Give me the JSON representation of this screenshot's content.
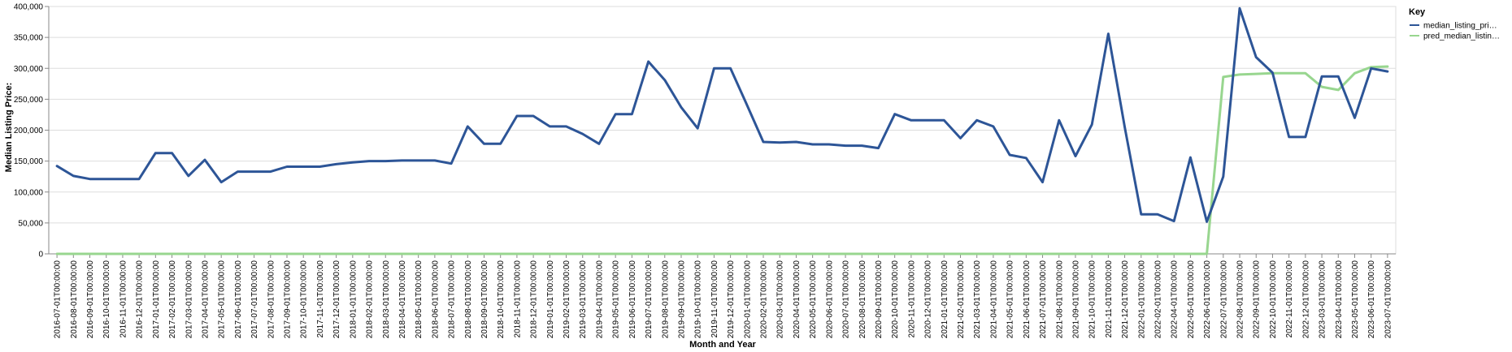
{
  "chart_data": {
    "type": "line",
    "xlabel": "Month and Year",
    "ylabel": "Median Listing Price:",
    "ylim": [
      0,
      400000
    ],
    "yticks": [
      "0",
      "50,000",
      "100,000",
      "150,000",
      "200,000",
      "250,000",
      "300,000",
      "350,000",
      "400,000"
    ],
    "grid": true,
    "legend_title": "Key",
    "legend_position": "right",
    "categories": [
      "2016-07-01T00:00:00",
      "2016-08-01T00:00:00",
      "2016-09-01T00:00:00",
      "2016-10-01T00:00:00",
      "2016-11-01T00:00:00",
      "2016-12-01T00:00:00",
      "2017-01-01T00:00:00",
      "2017-02-01T00:00:00",
      "2017-03-01T00:00:00",
      "2017-04-01T00:00:00",
      "2017-05-01T00:00:00",
      "2017-06-01T00:00:00",
      "2017-07-01T00:00:00",
      "2017-08-01T00:00:00",
      "2017-09-01T00:00:00",
      "2017-10-01T00:00:00",
      "2017-11-01T00:00:00",
      "2017-12-01T00:00:00",
      "2018-01-01T00:00:00",
      "2018-02-01T00:00:00",
      "2018-03-01T00:00:00",
      "2018-04-01T00:00:00",
      "2018-05-01T00:00:00",
      "2018-06-01T00:00:00",
      "2018-07-01T00:00:00",
      "2018-08-01T00:00:00",
      "2018-09-01T00:00:00",
      "2018-10-01T00:00:00",
      "2018-11-01T00:00:00",
      "2018-12-01T00:00:00",
      "2019-01-01T00:00:00",
      "2019-02-01T00:00:00",
      "2019-03-01T00:00:00",
      "2019-04-01T00:00:00",
      "2019-05-01T00:00:00",
      "2019-06-01T00:00:00",
      "2019-07-01T00:00:00",
      "2019-08-01T00:00:00",
      "2019-09-01T00:00:00",
      "2019-10-01T00:00:00",
      "2019-11-01T00:00:00",
      "2019-12-01T00:00:00",
      "2020-01-01T00:00:00",
      "2020-02-01T00:00:00",
      "2020-03-01T00:00:00",
      "2020-04-01T00:00:00",
      "2020-05-01T00:00:00",
      "2020-06-01T00:00:00",
      "2020-07-01T00:00:00",
      "2020-08-01T00:00:00",
      "2020-09-01T00:00:00",
      "2020-10-01T00:00:00",
      "2020-11-01T00:00:00",
      "2020-12-01T00:00:00",
      "2021-01-01T00:00:00",
      "2021-02-01T00:00:00",
      "2021-03-01T00:00:00",
      "2021-04-01T00:00:00",
      "2021-05-01T00:00:00",
      "2021-06-01T00:00:00",
      "2021-07-01T00:00:00",
      "2021-08-01T00:00:00",
      "2021-09-01T00:00:00",
      "2021-10-01T00:00:00",
      "2021-11-01T00:00:00",
      "2021-12-01T00:00:00",
      "2022-01-01T00:00:00",
      "2022-02-01T00:00:00",
      "2022-04-01T00:00:00",
      "2022-05-01T00:00:00",
      "2022-06-01T00:00:00",
      "2022-07-01T00:00:00",
      "2022-08-01T00:00:00",
      "2022-09-01T00:00:00",
      "2022-10-01T00:00:00",
      "2022-11-01T00:00:00",
      "2022-12-01T00:00:00",
      "2023-03-01T00:00:00",
      "2023-04-01T00:00:00",
      "2023-05-01T00:00:00",
      "2023-06-01T00:00:00",
      "2023-07-01T00:00:00"
    ],
    "series": [
      {
        "name": "median_listing_pri…",
        "color": "#2d5597",
        "values": [
          142000,
          126000,
          121000,
          121000,
          121000,
          121000,
          163000,
          163000,
          126000,
          152000,
          116000,
          133000,
          133000,
          133000,
          141000,
          141000,
          141000,
          145000,
          148000,
          150000,
          150000,
          151000,
          151000,
          151000,
          146000,
          206000,
          178000,
          178000,
          223000,
          223000,
          206000,
          206000,
          194000,
          178000,
          226000,
          226000,
          311000,
          281000,
          237000,
          203000,
          300000,
          300000,
          241000,
          181000,
          180000,
          181000,
          177000,
          177000,
          175000,
          175000,
          171000,
          226000,
          216000,
          216000,
          216000,
          187000,
          216000,
          206000,
          160000,
          155000,
          116000,
          216000,
          158000,
          209000,
          356000,
          205000,
          64000,
          64000,
          53000,
          156000,
          52000,
          125000,
          397000,
          318000,
          293000,
          189000,
          189000,
          287000,
          287000,
          220000,
          300000,
          295000
        ]
      },
      {
        "name": "pred_median_listin…",
        "color": "#98d68f",
        "values": [
          0,
          0,
          0,
          0,
          0,
          0,
          0,
          0,
          0,
          0,
          0,
          0,
          0,
          0,
          0,
          0,
          0,
          0,
          0,
          0,
          0,
          0,
          0,
          0,
          0,
          0,
          0,
          0,
          0,
          0,
          0,
          0,
          0,
          0,
          0,
          0,
          0,
          0,
          0,
          0,
          0,
          0,
          0,
          0,
          0,
          0,
          0,
          0,
          0,
          0,
          0,
          0,
          0,
          0,
          0,
          0,
          0,
          0,
          0,
          0,
          0,
          0,
          0,
          0,
          0,
          0,
          0,
          0,
          0,
          0,
          0,
          286000,
          290000,
          291000,
          292000,
          292000,
          292000,
          270000,
          265000,
          292000,
          302000,
          303000
        ]
      }
    ]
  }
}
